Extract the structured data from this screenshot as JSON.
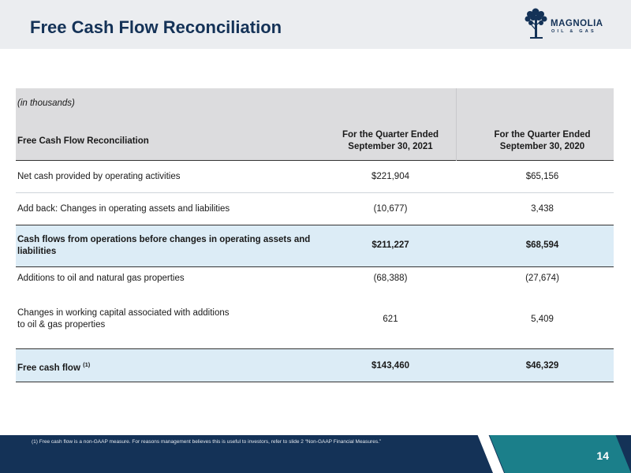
{
  "header": {
    "title": "Free Cash Flow Reconciliation",
    "logo_name": "MAGNOLIA",
    "logo_sub": "OIL & GAS",
    "logo_icon": "tree-icon",
    "background_color": "#ebedf0",
    "title_color": "#143257"
  },
  "table": {
    "units_note": "(in thousands)",
    "columns": [
      "Free Cash Flow Reconciliation",
      "For the Quarter Ended September 30, 2021",
      "For the Quarter Ended September 30, 2020"
    ],
    "col2_lines": [
      "For the Quarter Ended",
      "September 30, 2021"
    ],
    "col3_lines": [
      "For the Quarter Ended",
      "September 30, 2020"
    ],
    "rows": [
      {
        "label": "Net cash provided by operating activities",
        "q2021": "$221,904",
        "q2020": "$65,156"
      },
      {
        "label": "Add back: Changes in operating assets and liabilities",
        "q2021": "(10,677)",
        "q2020": "3,438"
      },
      {
        "label": "Cash flows from operations before changes in operating assets and liabilities",
        "q2021": "$211,227",
        "q2020": "$68,594"
      },
      {
        "label": "Additions to oil and natural gas properties",
        "q2021": "(68,388)",
        "q2020": "(27,674)"
      },
      {
        "label_line1": "Changes in working capital associated with additions",
        "label_line2": "to oil & gas properties",
        "q2021": "621",
        "q2020": "5,409"
      },
      {
        "label": "Free cash flow",
        "footnote_ref": "(1)",
        "q2021": "$143,460",
        "q2020": "$46,329"
      }
    ],
    "highlight_color": "#dcecf6",
    "header_color": "#dcdcde"
  },
  "footer": {
    "footnote": "(1)   Free cash flow is a non-GAAP measure. For reasons management believes this is useful to investors, refer to slide 2 “Non-GAAP Financial Measures.”",
    "page_number": "14",
    "navy_color": "#143257",
    "teal_color": "#1b7f8a"
  }
}
